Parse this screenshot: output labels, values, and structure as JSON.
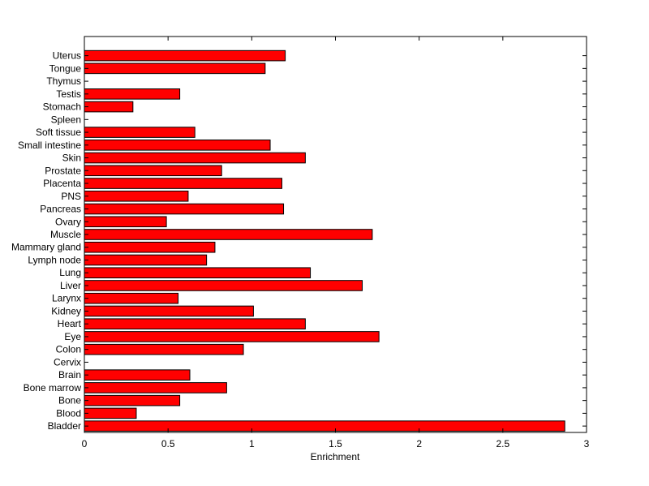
{
  "chart_data": {
    "type": "bar",
    "orientation": "horizontal",
    "categories": [
      "Bladder",
      "Blood",
      "Bone",
      "Bone marrow",
      "Brain",
      "Cervix",
      "Colon",
      "Eye",
      "Heart",
      "Kidney",
      "Larynx",
      "Liver",
      "Lung",
      "Lymph node",
      "Mammary gland",
      "Muscle",
      "Ovary",
      "Pancreas",
      "PNS",
      "Placenta",
      "Prostate",
      "Skin",
      "Small intestine",
      "Soft tissue",
      "Spleen",
      "Stomach",
      "Testis",
      "Thymus",
      "Tongue",
      "Uterus"
    ],
    "values": [
      2.87,
      0.31,
      0.57,
      0.85,
      0.63,
      0,
      0.95,
      1.76,
      1.32,
      1.01,
      0.56,
      1.66,
      1.35,
      0.73,
      0.78,
      1.72,
      0.49,
      1.19,
      0.62,
      1.18,
      0.82,
      1.32,
      1.11,
      0.66,
      0,
      0.29,
      0.57,
      0,
      1.08,
      1.2
    ],
    "xlabel": "Enrichment",
    "ylabel": "",
    "title": "",
    "xlim": [
      0,
      3
    ],
    "xticks": [
      "0",
      "0.5",
      "1",
      "1.5",
      "2",
      "2.5",
      "3"
    ],
    "bar_color": "#ff0000",
    "edge_color": "#000000",
    "grid": false
  }
}
